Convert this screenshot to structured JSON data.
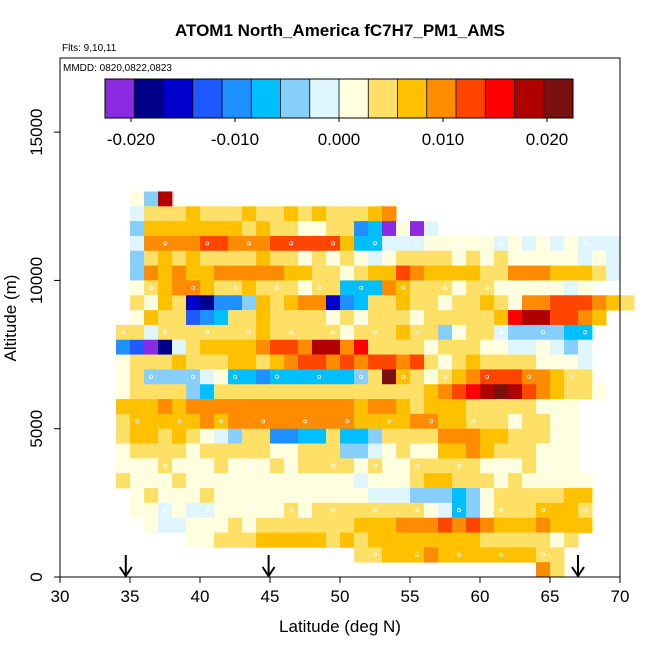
{
  "chart_data": {
    "type": "heatmap",
    "title": "ATOM1 North_America fC7H7_PM1_AMS",
    "subtitle_flights": "Flts: 9,10,11",
    "subtitle_dates": "MMDD: 0820,0822,0823",
    "xlabel": "Latitude (deg N)",
    "ylabel": "Altitude (m)",
    "xlim": [
      30,
      70
    ],
    "ylim": [
      0,
      17500
    ],
    "x_ticks": [
      30,
      35,
      40,
      45,
      50,
      55,
      60,
      65,
      70
    ],
    "x_tick_labels": [
      "30",
      "35",
      "40",
      "45",
      "50",
      "55",
      "60",
      "65",
      "70"
    ],
    "y_ticks": [
      0,
      5000,
      10000,
      15000
    ],
    "y_tick_labels": [
      "0",
      "5000",
      "10000",
      "15000"
    ],
    "colorbar": {
      "range": [
        -0.0225,
        0.0225
      ],
      "ticks": [
        -0.02,
        -0.01,
        0.0,
        0.01,
        0.02
      ],
      "tick_labels": [
        "-0.020",
        "-0.010",
        "0.000",
        "0.010",
        "0.020"
      ],
      "colors": [
        "#8a2be2",
        "#00008b",
        "#0000cd",
        "#1e5aff",
        "#1e90ff",
        "#00bfff",
        "#87cefa",
        "#e0f6ff",
        "#ffffe0",
        "#ffe066",
        "#ffc000",
        "#ff8c00",
        "#ff4500",
        "#ff0000",
        "#b00000",
        "#7a1010"
      ]
    },
    "flight_markers_lat": [
      34.7,
      44.9,
      67.0
    ],
    "grid": false,
    "cell_size": {
      "lat": 1.0,
      "alt_m": 500
    },
    "rows": [
      {
        "alt": 12750,
        "lat0": 35,
        "values": [
          0.001,
          -0.003,
          0.019
        ]
      },
      {
        "alt": 12250,
        "lat0": 35,
        "values": [
          -0.002,
          0.004,
          0.005,
          0.004,
          0.006,
          0.005,
          0.003,
          0.004,
          0.006,
          0.005,
          0.004,
          0.006,
          0.005,
          0.007,
          0.005,
          0.004,
          0.005,
          0.008,
          0.009
        ]
      },
      {
        "alt": 11750,
        "lat0": 35,
        "values": [
          -0.003,
          0.006,
          0.007,
          0.006,
          0.007,
          0.006,
          0.006,
          0.007,
          0.005,
          0.006,
          0.004,
          0.003,
          0.001,
          0.0,
          0.003,
          0.004,
          -0.01,
          -0.008,
          -0.021,
          0.002,
          -0.023,
          -0.001
        ]
      },
      {
        "alt": 11250,
        "lat0": 35,
        "values": [
          -0.002,
          0.009,
          0.01,
          0.011,
          0.011,
          0.012,
          0.012,
          0.011,
          0.01,
          0.011,
          0.012,
          0.012,
          0.012,
          0.012,
          0.012,
          0.008,
          -0.006,
          -0.006,
          -0.002,
          -0.001,
          -0.002,
          0.001,
          0.0,
          0.0,
          0.001,
          0.0,
          -0.001,
          0.0,
          -0.001,
          0.0,
          -0.001,
          0.0,
          -0.001,
          -0.001,
          -0.002
        ]
      },
      {
        "alt": 10750,
        "lat0": 35,
        "values": [
          -0.004,
          0.005,
          0.007,
          0.005,
          0.006,
          0.005,
          0.003,
          0.004,
          0.005,
          0.006,
          0.005,
          0.004,
          0.002,
          0.003,
          0.002,
          0.003,
          0.002,
          -0.001,
          0.0,
          0.003,
          0.004,
          0.005,
          0.004,
          0.002,
          0.003,
          0.002,
          0.004,
          0.001,
          0.002,
          0.001,
          0.0,
          0.001,
          -0.001,
          0.0,
          -0.001
        ]
      },
      {
        "alt": 10250,
        "lat0": 35,
        "values": [
          -0.003,
          0.011,
          0.008,
          0.009,
          0.008,
          0.006,
          0.009,
          0.01,
          0.01,
          0.011,
          0.009,
          0.008,
          0.007,
          0.004,
          0.003,
          0.002,
          0.004,
          0.008,
          0.007,
          0.012,
          0.009,
          0.006,
          0.008,
          0.007,
          0.006,
          0.004,
          0.005,
          0.01,
          0.009,
          0.01,
          0.008,
          0.007,
          0.006,
          0.004,
          -0.001
        ]
      },
      {
        "alt": 9750,
        "lat0": 35,
        "values": [
          0.002,
          0.004,
          0.006,
          0.01,
          0.009,
          0.007,
          0.005,
          0.004,
          0.006,
          0.005,
          0.004,
          0.003,
          0.001,
          0.004,
          0.005,
          -0.006,
          -0.006,
          -0.008,
          0.011,
          0.008,
          0.005,
          0.004,
          0.003,
          0.002,
          0.003,
          0.004,
          0.002,
          0.001,
          0.002,
          0.001,
          0.0,
          -0.001,
          0.001
        ]
      },
      {
        "alt": 9250,
        "lat0": 35,
        "values": [
          0.004,
          0.002,
          0.006,
          0.005,
          -0.016,
          -0.019,
          -0.009,
          -0.011,
          -0.004,
          0.008,
          0.004,
          0.006,
          0.011,
          0.009,
          -0.016,
          -0.011,
          -0.007,
          0.004,
          0.003,
          0.006,
          0.004,
          0.005,
          0.002,
          0.004,
          0.003,
          0.006,
          0.004,
          0.002,
          0.009,
          0.011,
          0.013,
          0.014,
          0.012,
          0.011,
          0.007,
          0.003
        ]
      },
      {
        "alt": 8750,
        "lat0": 35,
        "values": [
          0.002,
          0.006,
          0.005,
          0.004,
          -0.012,
          -0.009,
          -0.008,
          0.004,
          0.003,
          0.006,
          0.004,
          0.005,
          0.003,
          0.004,
          0.002,
          0.003,
          0.002,
          0.004,
          0.003,
          0.003,
          0.002,
          0.004,
          0.003,
          0.005,
          0.004,
          0.005,
          0.007,
          0.016,
          0.019,
          0.018,
          0.013,
          0.012,
          0.009,
          0.007
        ]
      },
      {
        "alt": 8250,
        "lat0": 34,
        "values": [
          0.003,
          0.004,
          -0.001,
          0.003,
          0.004,
          0.005,
          0.004,
          0.004,
          0.003,
          0.005,
          0.006,
          0.004,
          0.005,
          0.004,
          0.003,
          0.004,
          0.002,
          0.003,
          0.004,
          0.005,
          0.006,
          0.003,
          0.004,
          -0.003,
          0.001,
          0.003,
          0.004,
          -0.002,
          -0.004,
          -0.003,
          -0.005,
          -0.004,
          -0.006,
          -0.007
        ]
      },
      {
        "alt": 7750,
        "lat0": 34,
        "values": [
          -0.01,
          -0.012,
          -0.02,
          -0.018,
          -0.002,
          0.005,
          0.006,
          0.007,
          0.007,
          0.008,
          0.01,
          0.012,
          0.012,
          0.011,
          0.019,
          0.017,
          0.01,
          0.016,
          0.005,
          0.004,
          0.003,
          0.004,
          0.002,
          0.003,
          0.004,
          0.003,
          0.001,
          0.002,
          -0.001,
          -0.002,
          0.0,
          -0.002,
          -0.003,
          -0.001
        ]
      },
      {
        "alt": 7250,
        "lat0": 34,
        "values": [
          0.002,
          0.004,
          0.003,
          0.004,
          0.006,
          0.005,
          0.004,
          0.005,
          0.007,
          0.006,
          0.005,
          0.006,
          0.009,
          0.013,
          0.012,
          0.011,
          0.012,
          0.011,
          0.013,
          0.012,
          0.011,
          0.012,
          0.003,
          0.002,
          0.004,
          0.006,
          0.004,
          0.003,
          0.004,
          0.005,
          0.002,
          0.001,
          0.0,
          -0.001
        ]
      },
      {
        "alt": 6750,
        "lat0": 34,
        "values": [
          0.002,
          0.003,
          -0.004,
          -0.003,
          -0.004,
          -0.005,
          -0.002,
          0.0,
          -0.006,
          -0.008,
          -0.009,
          -0.008,
          -0.007,
          -0.006,
          -0.008,
          -0.007,
          -0.006,
          -0.004,
          0.005,
          0.02,
          0.006,
          0.004,
          0.002,
          0.004,
          0.008,
          0.011,
          0.013,
          0.012,
          0.013,
          0.011,
          0.009,
          0.007,
          0.005,
          0.004
        ]
      },
      {
        "alt": 6250,
        "lat0": 34,
        "values": [
          0.002,
          0.004,
          0.005,
          0.004,
          0.003,
          -0.004,
          -0.006,
          0.003,
          0.004,
          0.005,
          0.004,
          0.003,
          0.004,
          0.005,
          0.004,
          0.003,
          0.004,
          0.005,
          0.004,
          0.003,
          0.004,
          0.005,
          0.007,
          0.011,
          0.012,
          0.016,
          0.018,
          0.021,
          0.017,
          0.012,
          0.009,
          0.007,
          0.004,
          0.003,
          0.002
        ]
      },
      {
        "alt": 5750,
        "lat0": 34,
        "values": [
          0.006,
          0.008,
          0.007,
          0.009,
          0.008,
          0.01,
          0.009,
          0.011,
          0.01,
          0.009,
          0.011,
          0.01,
          0.009,
          0.011,
          0.01,
          0.009,
          0.011,
          0.008,
          0.01,
          0.009,
          0.007,
          0.004,
          0.006,
          0.008,
          0.006,
          0.005,
          0.004,
          0.005,
          0.003,
          0.004,
          0.002,
          0.001,
          0.0
        ]
      },
      {
        "alt": 5250,
        "lat0": 34,
        "values": [
          0.004,
          0.006,
          0.007,
          0.008,
          0.006,
          0.007,
          0.009,
          0.008,
          0.009,
          0.01,
          0.009,
          0.011,
          0.01,
          0.009,
          0.01,
          0.011,
          0.009,
          0.008,
          0.007,
          0.006,
          0.007,
          0.009,
          0.01,
          0.008,
          0.006,
          0.005,
          0.004,
          0.003,
          0.002,
          0.004,
          0.003,
          0.002,
          0.001
        ]
      },
      {
        "alt": 4750,
        "lat0": 34,
        "values": [
          0.003,
          0.007,
          0.006,
          0.005,
          0.006,
          0.004,
          0.002,
          -0.002,
          -0.004,
          0.005,
          0.003,
          -0.011,
          -0.01,
          -0.008,
          -0.007,
          0.005,
          -0.008,
          -0.006,
          -0.005,
          0.003,
          0.004,
          0.003,
          0.004,
          0.009,
          0.01,
          0.009,
          0.008,
          0.006,
          0.005,
          0.004,
          0.003,
          0.002,
          0.001
        ]
      },
      {
        "alt": 4250,
        "lat0": 34,
        "values": [
          0.001,
          0.003,
          0.004,
          0.005,
          0.004,
          0.002,
          0.003,
          0.004,
          0.005,
          0.004,
          0.003,
          0.001,
          0.002,
          0.004,
          0.005,
          0.003,
          -0.003,
          -0.004,
          -0.002,
          0.002,
          0.003,
          0.001,
          0.002,
          0.006,
          0.007,
          0.009,
          0.008,
          0.005,
          0.004,
          0.003,
          0.002,
          0.001,
          0.0
        ]
      },
      {
        "alt": 3750,
        "lat0": 34,
        "values": [
          0.001,
          0.001,
          0.002,
          0.003,
          0.002,
          0.001,
          0.002,
          0.003,
          0.002,
          0.001,
          0.002,
          0.003,
          0.002,
          0.003,
          0.004,
          0.005,
          0.003,
          0.002,
          0.003,
          0.002,
          0.001,
          0.003,
          0.004,
          0.005,
          0.004,
          0.003,
          0.002,
          0.001,
          0.002,
          0.003,
          0.001,
          0.0,
          0.001
        ]
      },
      {
        "alt": 3250,
        "lat0": 34,
        "values": [
          0.003,
          0.002,
          0.001,
          0.002,
          0.003,
          0.002,
          0.001,
          0.002,
          0.001,
          0.001,
          0.002,
          0.001,
          0.002,
          0.001,
          0.002,
          0.001,
          0.0,
          -0.001,
          0.0,
          0.001,
          0.001,
          0.004,
          0.006,
          0.007,
          0.005,
          0.004,
          0.003,
          0.002,
          0.003,
          0.002,
          0.001,
          0.002,
          0.001,
          0.002
        ]
      },
      {
        "alt": 2750,
        "lat0": 35,
        "values": [
          0.002,
          0.003,
          0.002,
          0.001,
          0.002,
          0.003,
          0.002,
          0.001,
          0.002,
          0.001,
          0.002,
          0.001,
          0.002,
          0.001,
          0.002,
          0.001,
          0.0,
          -0.001,
          -0.002,
          -0.001,
          -0.003,
          -0.004,
          -0.005,
          -0.006,
          -0.004,
          0.002,
          0.003,
          0.004,
          0.003,
          0.005,
          0.004,
          0.006,
          0.007
        ]
      },
      {
        "alt": 2250,
        "lat0": 35,
        "values": [
          0.001,
          0.0,
          -0.001,
          0.0,
          -0.002,
          -0.001,
          0.0,
          0.001,
          0.0,
          0.002,
          0.001,
          0.003,
          0.002,
          0.004,
          0.005,
          0.004,
          0.003,
          0.004,
          0.005,
          0.004,
          0.003,
          0.002,
          -0.001,
          -0.008,
          -0.004,
          0.002,
          0.003,
          0.004,
          0.005,
          0.006,
          0.007,
          0.006,
          0.005
        ]
      },
      {
        "alt": 1750,
        "lat0": 36,
        "values": [
          0.0,
          -0.001,
          -0.001,
          0.0,
          0.001,
          0.002,
          0.003,
          0.002,
          0.003,
          0.004,
          0.005,
          0.004,
          0.003,
          0.004,
          0.005,
          0.006,
          0.007,
          0.008,
          0.009,
          0.01,
          0.011,
          0.012,
          0.011,
          0.012,
          0.011,
          0.006,
          0.007,
          0.008,
          0.009,
          0.008,
          0.007,
          0.006
        ]
      },
      {
        "alt": 1250,
        "lat0": 39,
        "values": [
          0.001,
          0.002,
          0.003,
          0.004,
          0.005,
          0.006,
          0.007,
          0.008,
          0.007,
          0.006,
          0.005,
          0.006,
          0.005,
          0.006,
          0.007,
          0.006,
          0.008,
          0.007,
          0.006,
          0.007,
          0.006,
          0.005,
          0.004,
          0.003,
          0.004,
          0.003,
          0.002,
          0.003
        ]
      },
      {
        "alt": 750,
        "lat0": 51,
        "values": [
          0.004,
          0.005,
          0.006,
          0.007,
          0.008,
          0.009,
          0.008,
          0.007,
          0.008,
          0.007,
          0.006,
          0.007,
          0.006,
          0.005,
          0.005
        ]
      },
      {
        "alt": 250,
        "lat0": 64,
        "values": [
          0.009,
          0.004
        ]
      }
    ]
  }
}
